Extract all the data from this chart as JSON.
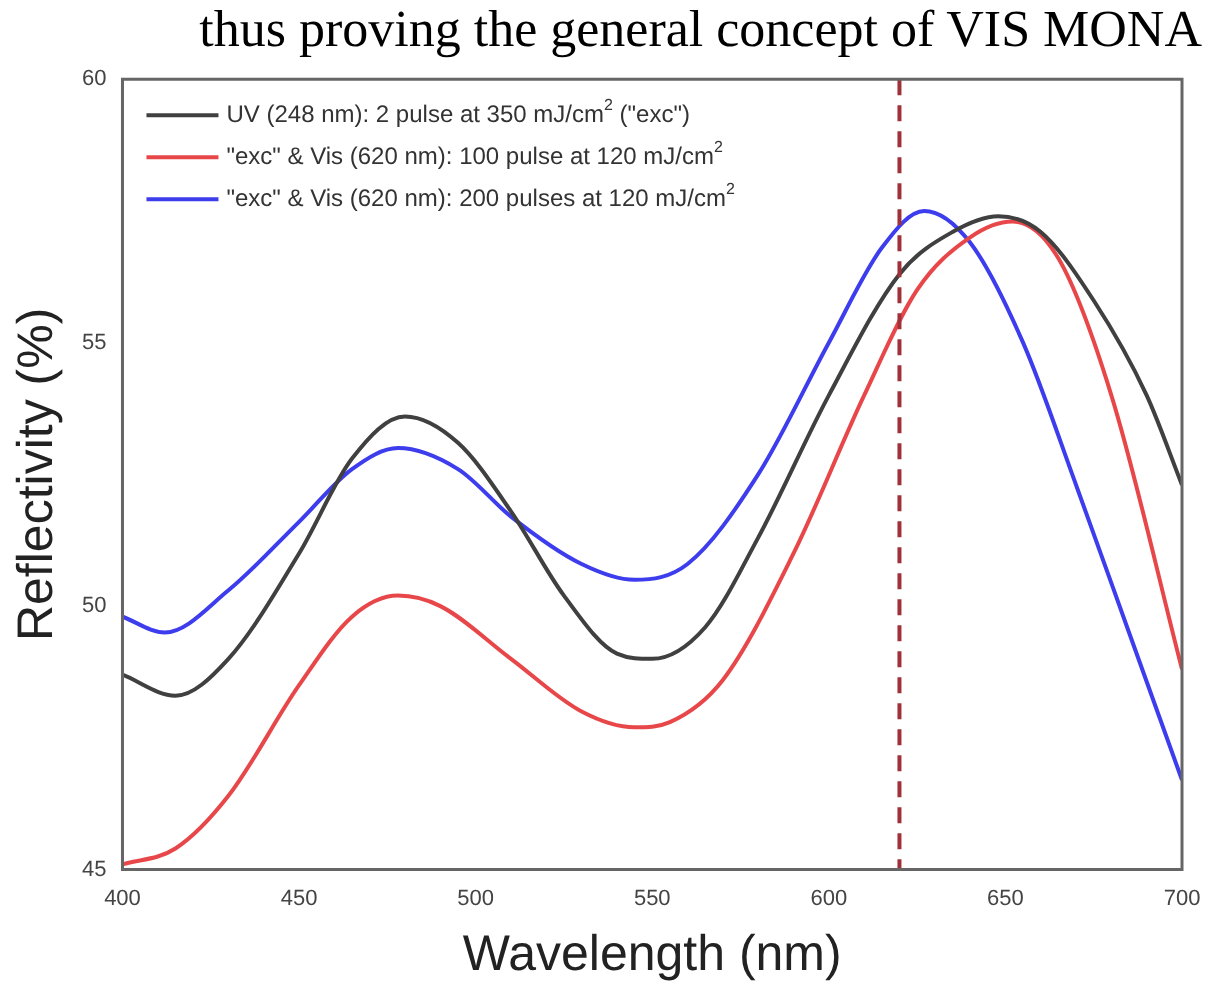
{
  "chart_data": {
    "type": "line",
    "xlabel": "Wavelength (nm)",
    "ylabel": "Reflectivity (%)",
    "annotations": [
      "thus proving the general concept of VIS MONA"
    ],
    "xlim": [
      400,
      700
    ],
    "xticks": [
      400,
      450,
      500,
      550,
      600,
      650,
      700
    ],
    "ylim": [
      45,
      60
    ],
    "yticks": [
      45,
      50,
      55,
      60
    ],
    "grid": false,
    "legend": "top left",
    "marker": "none",
    "line_style": "solid",
    "ref_lines": [
      {
        "axis": "x",
        "value": 620,
        "color": "#a0303a",
        "line_style": "dashed"
      }
    ],
    "series": [
      {
        "name": "UV (248 nm): 2 pulse at 350 mJ/cm$^{2}$ (\"exc\")",
        "color": "#404040",
        "x": [
          400,
          415,
          430,
          450,
          465,
          480,
          495,
          510,
          525,
          540,
          550,
          565,
          580,
          600,
          620,
          635,
          648,
          660,
          675,
          690,
          700
        ],
        "values": [
          48.7,
          48.3,
          49.0,
          51.0,
          52.8,
          53.6,
          53.1,
          51.8,
          50.2,
          49.1,
          49.0,
          49.6,
          51.3,
          54.0,
          56.3,
          57.1,
          57.4,
          57.1,
          55.8,
          54.0,
          52.3
        ]
      },
      {
        "name": "\"exc\" & Vis (620 nm): 100 pulse at 120 mJ/cm$^{2}$",
        "color": "#e8474a",
        "x": [
          400,
          415,
          430,
          450,
          465,
          478,
          490,
          510,
          530,
          545,
          555,
          570,
          590,
          610,
          625,
          640,
          652,
          665,
          680,
          700
        ],
        "values": [
          45.1,
          45.4,
          46.4,
          48.5,
          49.8,
          50.2,
          50.0,
          49.0,
          48.0,
          47.7,
          47.8,
          48.6,
          51.0,
          54.0,
          56.0,
          57.0,
          57.3,
          56.6,
          54.0,
          48.8
        ]
      },
      {
        "name": "\"exc\" & Vis (620 nm): 200 pulses at 120 mJ/cm$^{2}$",
        "color": "#3d3dee",
        "x": [
          400,
          412,
          430,
          450,
          465,
          478,
          495,
          510,
          530,
          545,
          560,
          580,
          600,
          615,
          627,
          640,
          655,
          670,
          685,
          700
        ],
        "values": [
          49.8,
          49.5,
          50.3,
          51.6,
          52.6,
          53.0,
          52.6,
          51.7,
          50.8,
          50.5,
          50.8,
          52.5,
          55.0,
          56.8,
          57.5,
          56.9,
          55.0,
          52.3,
          49.5,
          46.7
        ]
      }
    ]
  }
}
